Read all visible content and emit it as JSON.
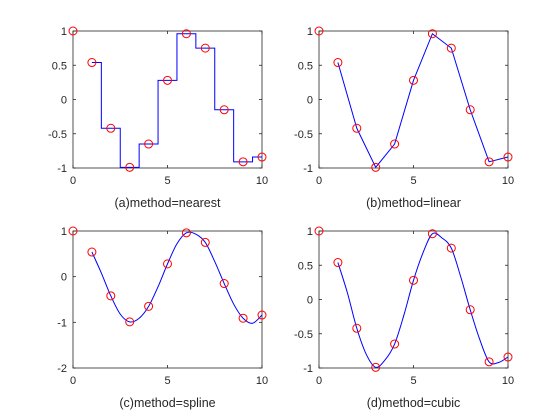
{
  "chart_data": [
    {
      "type": "line",
      "xlabel": "(a)method=nearest",
      "xlim": [
        0,
        10
      ],
      "ylim": [
        -1,
        1
      ],
      "xticks": [
        0,
        5,
        10
      ],
      "yticks": [
        -1,
        -0.5,
        0,
        0.5,
        1
      ],
      "ytick_labels": [
        "-1",
        "-0.5",
        "0",
        "0.5",
        "1"
      ],
      "method": "nearest",
      "curve_color": "#0000ff",
      "marker_color": "#ff0000",
      "samples": {
        "x": [
          0,
          1,
          2,
          3,
          4,
          5,
          6,
          7,
          8,
          9,
          10
        ],
        "y": [
          1,
          0.54,
          -0.42,
          -0.99,
          -0.65,
          0.28,
          0.96,
          0.75,
          -0.15,
          -0.91,
          -0.84
        ]
      },
      "series": [
        {
          "x": [
            1,
            1.5,
            1.5,
            2.5,
            2.5,
            3.5,
            3.5,
            4.5,
            4.5,
            5.5,
            5.5,
            6.5,
            6.5,
            7.5,
            7.5,
            8.5,
            8.5,
            9.5,
            9.5,
            10
          ],
          "y": [
            0.54,
            0.54,
            -0.42,
            -0.42,
            -0.99,
            -0.99,
            -0.65,
            -0.65,
            0.28,
            0.28,
            0.96,
            0.96,
            0.75,
            0.75,
            -0.15,
            -0.15,
            -0.91,
            -0.91,
            -0.84,
            -0.84
          ]
        }
      ]
    },
    {
      "type": "line",
      "xlabel": "(b)method=linear",
      "xlim": [
        0,
        10
      ],
      "ylim": [
        -1,
        1
      ],
      "xticks": [
        0,
        5,
        10
      ],
      "yticks": [
        -1,
        -0.5,
        0,
        0.5,
        1
      ],
      "ytick_labels": [
        "-1",
        "-0.5",
        "0",
        "0.5",
        "1"
      ],
      "method": "linear",
      "curve_color": "#0000ff",
      "marker_color": "#ff0000",
      "samples": {
        "x": [
          0,
          1,
          2,
          3,
          4,
          5,
          6,
          7,
          8,
          9,
          10
        ],
        "y": [
          1,
          0.54,
          -0.42,
          -0.99,
          -0.65,
          0.28,
          0.96,
          0.75,
          -0.15,
          -0.91,
          -0.84
        ]
      },
      "series": [
        {
          "x": [
            1,
            2,
            3,
            4,
            5,
            6,
            7,
            8,
            9,
            10
          ],
          "y": [
            0.54,
            -0.42,
            -0.99,
            -0.65,
            0.28,
            0.96,
            0.75,
            -0.15,
            -0.91,
            -0.84
          ]
        }
      ]
    },
    {
      "type": "line",
      "xlabel": "(c)method=spline",
      "xlim": [
        0,
        10
      ],
      "ylim": [
        -2,
        1
      ],
      "xticks": [
        0,
        5,
        10
      ],
      "yticks": [
        -2,
        -1,
        0,
        1
      ],
      "ytick_labels": [
        "-2",
        "-1",
        "0",
        "1"
      ],
      "method": "spline",
      "curve_color": "#0000ff",
      "marker_color": "#ff0000",
      "samples": {
        "x": [
          0,
          1,
          2,
          3,
          4,
          5,
          6,
          7,
          8,
          9,
          10
        ],
        "y": [
          1,
          0.54,
          -0.42,
          -0.99,
          -0.65,
          0.28,
          0.96,
          0.75,
          -0.15,
          -0.91,
          -0.84
        ]
      },
      "series": [
        {
          "x": [
            1,
            1.5,
            2,
            2.5,
            3,
            3.5,
            4,
            4.5,
            5,
            5.5,
            6,
            6.5,
            7,
            7.5,
            8,
            8.5,
            9,
            9.5,
            10
          ],
          "y": [
            0.54,
            0.08,
            -0.42,
            -0.82,
            -0.99,
            -0.91,
            -0.65,
            -0.22,
            0.28,
            0.72,
            0.96,
            0.93,
            0.75,
            0.33,
            -0.15,
            -0.6,
            -0.91,
            -1.02,
            -0.84
          ]
        }
      ]
    },
    {
      "type": "line",
      "xlabel": "(d)method=cubic",
      "xlim": [
        0,
        10
      ],
      "ylim": [
        -1,
        1
      ],
      "xticks": [
        0,
        5,
        10
      ],
      "yticks": [
        -1,
        -0.5,
        0,
        0.5,
        1
      ],
      "ytick_labels": [
        "-1",
        "-0.5",
        "0",
        "0.5",
        "1"
      ],
      "method": "cubic",
      "curve_color": "#0000ff",
      "marker_color": "#ff0000",
      "samples": {
        "x": [
          0,
          1,
          2,
          3,
          4,
          5,
          6,
          7,
          8,
          9,
          10
        ],
        "y": [
          1,
          0.54,
          -0.42,
          -0.99,
          -0.65,
          0.28,
          0.96,
          0.75,
          -0.15,
          -0.91,
          -0.84
        ]
      },
      "series": [
        {
          "x": [
            1,
            1.5,
            2,
            2.5,
            3,
            3.5,
            4,
            4.5,
            5,
            5.5,
            6,
            6.5,
            7,
            7.5,
            8,
            8.5,
            9,
            9.5,
            10
          ],
          "y": [
            0.54,
            0.1,
            -0.42,
            -0.8,
            -0.99,
            -0.88,
            -0.65,
            -0.22,
            0.28,
            0.68,
            0.96,
            0.9,
            0.75,
            0.33,
            -0.15,
            -0.58,
            -0.91,
            -0.92,
            -0.84
          ]
        }
      ]
    }
  ]
}
